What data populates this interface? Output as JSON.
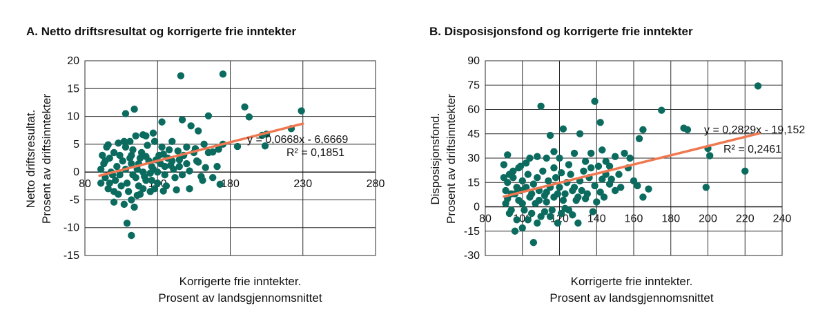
{
  "colors": {
    "points": "#0b6b5f",
    "trend": "#f07850",
    "grid": "#2a2a2a",
    "axis": "#111111"
  },
  "chart_data": [
    {
      "type": "scatter",
      "panel_title": "A. Netto driftsresultat og korrigerte frie inntekter",
      "xlabel": [
        "Korrigerte frie inntekter.",
        "Prosent av landsgjennomsnittet"
      ],
      "ylabel": [
        "Netto driftsresultat.",
        "Prosent av driftsinntekter"
      ],
      "xlim": [
        80,
        280
      ],
      "ylim": [
        -15,
        20
      ],
      "xticks": [
        "80",
        "130",
        "180",
        "230",
        "280"
      ],
      "yticks": [
        "-15",
        "-10",
        "-5",
        "0",
        "5",
        "10",
        "15",
        "20"
      ],
      "grid": true,
      "trendline": {
        "slope": 0.0668,
        "intercept": -6.6669,
        "x_from": 90,
        "x_to": 230
      },
      "equation": "y = 0,0668x - 6,6669",
      "r2_label": "R² = 0,1851",
      "points": [
        [
          146,
          17.3
        ],
        [
          175,
          17.6
        ],
        [
          229,
          11
        ],
        [
          190,
          11.7
        ],
        [
          193,
          9.9
        ],
        [
          165,
          10.1
        ],
        [
          108,
          10.5
        ],
        [
          114,
          11.3
        ],
        [
          147,
          9.4
        ],
        [
          133,
          9
        ],
        [
          153,
          8.3
        ],
        [
          158,
          7.4
        ],
        [
          202,
          6.6
        ],
        [
          205,
          6.8
        ],
        [
          222,
          7.8
        ],
        [
          204,
          4.7
        ],
        [
          127,
          7
        ],
        [
          122,
          6.5
        ],
        [
          115,
          6.5
        ],
        [
          120,
          6.7
        ],
        [
          111,
          5.5
        ],
        [
          96,
          4.9
        ],
        [
          140,
          5.5
        ],
        [
          162,
          5
        ],
        [
          175,
          5
        ],
        [
          185,
          4.6
        ],
        [
          172,
          4.1
        ],
        [
          168,
          3.6
        ],
        [
          155,
          3.5
        ],
        [
          137,
          2.5
        ],
        [
          150,
          1.5
        ],
        [
          145,
          1
        ],
        [
          127,
          0.5
        ],
        [
          135,
          -0.5
        ],
        [
          168,
          -1
        ],
        [
          173,
          -2.2
        ],
        [
          161,
          -1.5
        ],
        [
          152,
          -3
        ],
        [
          143,
          -3.2
        ],
        [
          134,
          -3.4
        ],
        [
          125,
          -3.5
        ],
        [
          118,
          -4
        ],
        [
          112,
          -5
        ],
        [
          107,
          -5.8
        ],
        [
          109,
          -9.2
        ],
        [
          112,
          -11.4
        ],
        [
          114,
          -6.3
        ],
        [
          100,
          -5.4
        ],
        [
          120,
          -3
        ],
        [
          130,
          -2
        ],
        [
          117,
          1.5
        ],
        [
          124,
          2
        ],
        [
          131,
          3
        ],
        [
          138,
          4
        ],
        [
          112,
          3
        ],
        [
          106,
          2
        ],
        [
          102,
          1
        ],
        [
          98,
          0
        ],
        [
          94,
          -1
        ],
        [
          91,
          -2
        ],
        [
          96,
          -3
        ],
        [
          103,
          -4
        ],
        [
          109,
          -2
        ],
        [
          115,
          -1
        ],
        [
          120,
          0
        ],
        [
          126,
          1
        ],
        [
          132,
          1.5
        ],
        [
          140,
          2
        ],
        [
          148,
          3
        ],
        [
          157,
          2
        ],
        [
          142,
          -1
        ],
        [
          136,
          -2.5
        ],
        [
          128,
          -3
        ],
        [
          122,
          -1.5
        ],
        [
          118,
          2.5
        ],
        [
          113,
          4
        ],
        [
          108,
          4.5
        ],
        [
          104,
          3
        ],
        [
          100,
          3.5
        ],
        [
          97,
          2.5
        ],
        [
          93,
          1.5
        ],
        [
          92,
          3
        ],
        [
          95,
          4.5
        ],
        [
          99,
          -0.5
        ],
        [
          101,
          -1.5
        ],
        [
          105,
          -2.5
        ],
        [
          110,
          -3.5
        ],
        [
          116,
          -4.2
        ],
        [
          121,
          -0.8
        ],
        [
          126,
          -1.5
        ],
        [
          130,
          0
        ],
        [
          135,
          1
        ],
        [
          141,
          0.5
        ],
        [
          147,
          -0.5
        ],
        [
          160,
          -0.8
        ],
        [
          165,
          3.5
        ],
        [
          171,
          1
        ],
        [
          150,
          4.5
        ],
        [
          144,
          3.8
        ],
        [
          156,
          4.2
        ],
        [
          103,
          5.2
        ],
        [
          107,
          5.5
        ],
        [
          111,
          2.5
        ],
        [
          113,
          -0.5
        ],
        [
          117,
          -2.5
        ],
        [
          123,
          4.8
        ],
        [
          128,
          5.5
        ],
        [
          133,
          4.5
        ],
        [
          91,
          0.5
        ],
        [
          94,
          2
        ],
        [
          97,
          -2
        ],
        [
          100,
          -3.5
        ],
        [
          104,
          -0.5
        ],
        [
          108,
          0.5
        ],
        [
          112,
          1.5
        ],
        [
          116,
          0.5
        ],
        [
          119,
          3.5
        ],
        [
          122,
          2.8
        ],
        [
          125,
          -0.2
        ],
        [
          129,
          2.2
        ],
        [
          134,
          3.2
        ],
        [
          139,
          1.2
        ],
        [
          145,
          2.2
        ],
        [
          152,
          0.2
        ],
        [
          158,
          1.8
        ],
        [
          163,
          0.8
        ]
      ]
    },
    {
      "type": "scatter",
      "panel_title": "B. Disposisjonsfond og korrigerte frie inntekter",
      "xlabel": [
        "Korrigerte frie inntekter.",
        "Prosent av landsgjennomsnittet"
      ],
      "ylabel": [
        "Disposisjonsfond.",
        "Prosent av driftsinntekter"
      ],
      "xlim": [
        80,
        240
      ],
      "ylim": [
        -30,
        90
      ],
      "xticks": [
        "80",
        "100",
        "120",
        "140",
        "160",
        "180",
        "200",
        "220",
        "240"
      ],
      "yticks": [
        "-30",
        "-15",
        "0",
        "15",
        "30",
        "45",
        "60",
        "75",
        "90"
      ],
      "grid": true,
      "trendline": {
        "slope": 0.2829,
        "intercept": -19.152,
        "x_from": 90,
        "x_to": 228
      },
      "equation": "y = 0,2829x - 19,152",
      "r2_label": "R² = 0,2461",
      "points": [
        [
          227,
          74.5
        ],
        [
          139,
          65
        ],
        [
          110,
          62
        ],
        [
          175,
          59.5
        ],
        [
          187,
          48.5
        ],
        [
          189,
          47.5
        ],
        [
          165,
          47.5
        ],
        [
          163,
          42
        ],
        [
          142,
          52
        ],
        [
          122,
          48
        ],
        [
          131,
          45
        ],
        [
          115,
          44
        ],
        [
          200,
          36
        ],
        [
          201,
          31.5
        ],
        [
          220,
          22
        ],
        [
          199,
          12
        ],
        [
          158,
          30
        ],
        [
          155,
          33
        ],
        [
          150,
          31
        ],
        [
          147,
          25
        ],
        [
          145,
          20
        ],
        [
          143,
          35
        ],
        [
          137,
          33
        ],
        [
          134,
          28
        ],
        [
          128,
          33
        ],
        [
          125,
          26
        ],
        [
          120,
          30
        ],
        [
          117,
          34
        ],
        [
          113,
          30
        ],
        [
          108,
          31
        ],
        [
          104,
          30
        ],
        [
          102,
          27
        ],
        [
          98,
          24
        ],
        [
          95,
          22
        ],
        [
          92,
          32
        ],
        [
          90,
          26
        ],
        [
          160,
          16
        ],
        [
          162,
          13
        ],
        [
          168,
          11
        ],
        [
          165,
          6
        ],
        [
          150,
          10
        ],
        [
          147,
          14
        ],
        [
          143,
          17
        ],
        [
          140,
          3
        ],
        [
          138,
          -3
        ],
        [
          134,
          5
        ],
        [
          130,
          -10
        ],
        [
          127,
          -5
        ],
        [
          123,
          -1
        ],
        [
          119,
          -10
        ],
        [
          115,
          -6
        ],
        [
          112,
          -3
        ],
        [
          108,
          -10
        ],
        [
          106,
          -22
        ],
        [
          100,
          -13
        ],
        [
          96,
          -15
        ],
        [
          93,
          -4
        ],
        [
          91,
          2
        ],
        [
          94,
          8
        ],
        [
          97,
          12
        ],
        [
          100,
          16
        ],
        [
          103,
          20
        ],
        [
          106,
          14
        ],
        [
          109,
          10
        ],
        [
          112,
          7
        ],
        [
          115,
          12
        ],
        [
          118,
          18
        ],
        [
          121,
          21
        ],
        [
          124,
          15
        ],
        [
          127,
          10
        ],
        [
          130,
          6
        ],
        [
          133,
          22
        ],
        [
          136,
          18
        ],
        [
          139,
          13
        ],
        [
          142,
          9
        ],
        [
          148,
          17
        ],
        [
          153,
          12
        ],
        [
          157,
          24
        ],
        [
          92,
          15
        ],
        [
          95,
          18
        ],
        [
          98,
          4
        ],
        [
          101,
          -2
        ],
        [
          104,
          6
        ],
        [
          107,
          2
        ],
        [
          110,
          -6
        ],
        [
          113,
          3
        ],
        [
          116,
          -2
        ],
        [
          119,
          8
        ],
        [
          122,
          4
        ],
        [
          125,
          -2
        ],
        [
          128,
          12
        ],
        [
          131,
          16
        ],
        [
          135,
          8
        ],
        [
          141,
          25
        ],
        [
          145,
          28
        ],
        [
          91,
          10
        ],
        [
          93,
          20
        ],
        [
          96,
          8
        ],
        [
          99,
          10
        ],
        [
          102,
          12
        ],
        [
          105,
          8
        ],
        [
          108,
          18
        ],
        [
          111,
          22
        ],
        [
          114,
          16
        ],
        [
          117,
          6
        ],
        [
          120,
          12
        ],
        [
          123,
          8
        ],
        [
          126,
          20
        ],
        [
          129,
          4
        ],
        [
          132,
          10
        ],
        [
          137,
          24
        ],
        [
          144,
          6
        ],
        [
          152,
          20
        ],
        [
          99,
          25
        ],
        [
          103,
          -8
        ],
        [
          97,
          -8
        ],
        [
          94,
          -2
        ],
        [
          92,
          5
        ],
        [
          90,
          18
        ],
        [
          100,
          2
        ],
        [
          105,
          -4
        ],
        [
          109,
          4
        ],
        [
          113,
          9
        ],
        [
          117,
          24
        ],
        [
          121,
          -4
        ]
      ]
    }
  ]
}
